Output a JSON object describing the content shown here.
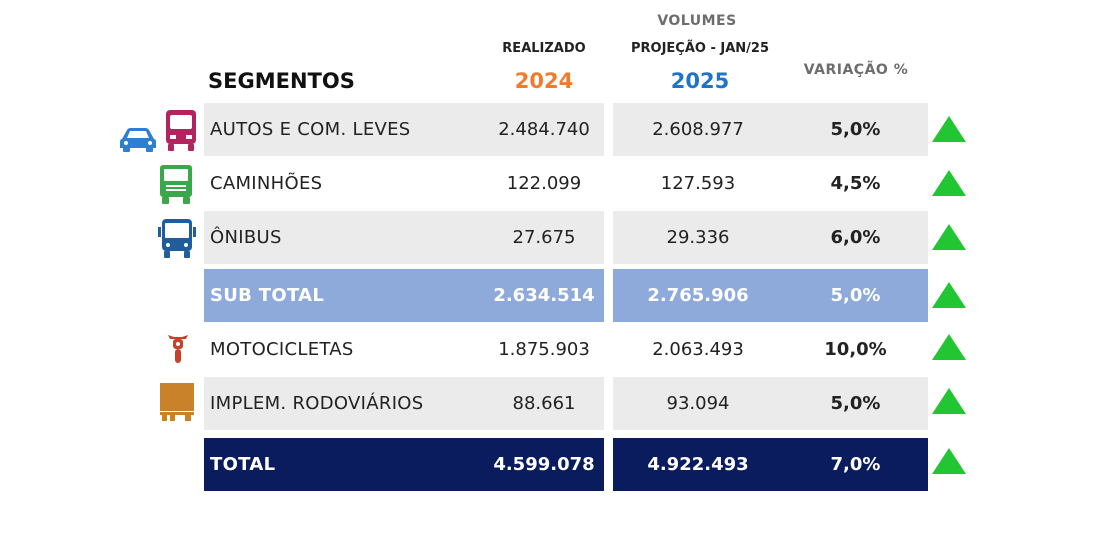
{
  "header": {
    "segmentos": "SEGMENTOS",
    "realizado": "REALIZADO",
    "year_2024": "2024",
    "volumes": "VOLUMES",
    "projecao": "PROJEÇÃO - JAN/25",
    "year_2025": "2025",
    "variacao": "VARIAÇÃO %"
  },
  "colors": {
    "year_2024": "#f07b2b",
    "year_2025": "#1f74c8",
    "row_gray": "#ebebeb",
    "subtotal": "#8eaadb",
    "total": "#0b1c5e",
    "arrow_up": "#22c532"
  },
  "rows": [
    {
      "segment": "AUTOS E COM. LEVES",
      "v2024": "2.484.740",
      "v2025": "2.608.977",
      "variation": "5,0%",
      "trend": "up",
      "icons": [
        "car-icon",
        "van-icon"
      ]
    },
    {
      "segment": "CAMINHÕES",
      "v2024": "122.099",
      "v2025": "127.593",
      "variation": "4,5%",
      "trend": "up",
      "icons": [
        "truck-icon"
      ]
    },
    {
      "segment": "ÔNIBUS",
      "v2024": "27.675",
      "v2025": "29.336",
      "variation": "6,0%",
      "trend": "up",
      "icons": [
        "bus-icon"
      ]
    },
    {
      "segment": "SUB TOTAL",
      "v2024": "2.634.514",
      "v2025": "2.765.906",
      "variation": "5,0%",
      "trend": "up",
      "icons": []
    },
    {
      "segment": "MOTOCICLETAS",
      "v2024": "1.875.903",
      "v2025": "2.063.493",
      "variation": "10,0%",
      "trend": "up",
      "icons": [
        "motorcycle-icon"
      ]
    },
    {
      "segment": "IMPLEM. RODOVIÁRIOS",
      "v2024": "88.661",
      "v2025": "93.094",
      "variation": "5,0%",
      "trend": "up",
      "icons": [
        "trailer-icon"
      ]
    },
    {
      "segment": "TOTAL",
      "v2024": "4.599.078",
      "v2025": "4.922.493",
      "variation": "7,0%",
      "trend": "up",
      "icons": []
    }
  ]
}
